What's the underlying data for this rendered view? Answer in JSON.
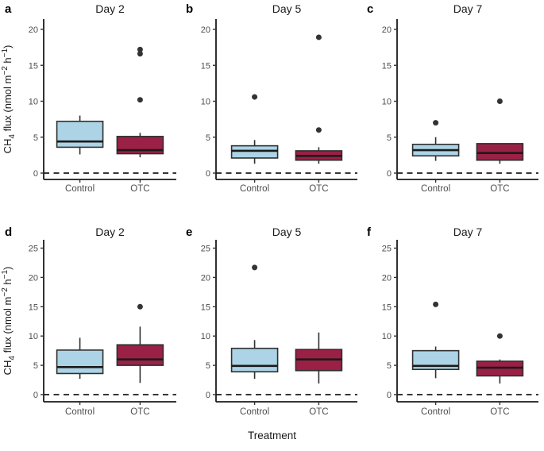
{
  "figure": {
    "xlabel": "Treatment",
    "ylabel_rich": [
      {
        "t": "CH"
      },
      {
        "t": "4",
        "sub": true
      },
      {
        "t": " flux (nmol m"
      },
      {
        "t": "−2",
        "sup": true
      },
      {
        "t": " h"
      },
      {
        "t": "−1",
        "sup": true
      },
      {
        "t": ")"
      }
    ],
    "categories": [
      "Control",
      "OTC"
    ],
    "colors": {
      "control_fill": "#ACD4E6",
      "otc_fill": "#9B2045",
      "box_stroke": "#2F2F2F",
      "median": "#1A1A1A",
      "axis": "#1A1A1A",
      "tick_text": "#4D4D4D",
      "outlier": "#333333",
      "title_text": "#1A1A1A",
      "reference_line": "#1A1A1A"
    }
  },
  "chart_data": [
    {
      "type": "boxplot",
      "panel_label": "a",
      "title": "Day 2",
      "ylim": [
        0,
        20
      ],
      "yticks": [
        0,
        5,
        10,
        15,
        20
      ],
      "reference_line_y": 0,
      "boxes": [
        {
          "category": "Control",
          "group": "control",
          "whisker_low": 2.6,
          "q1": 3.6,
          "median": 4.4,
          "q3": 7.2,
          "whisker_high": 8.0,
          "outliers": []
        },
        {
          "category": "OTC",
          "group": "otc",
          "whisker_low": 2.2,
          "q1": 2.7,
          "median": 3.2,
          "q3": 5.1,
          "whisker_high": 5.6,
          "outliers": [
            10.2,
            16.6,
            17.2
          ]
        }
      ]
    },
    {
      "type": "boxplot",
      "panel_label": "b",
      "title": "Day 5",
      "ylim": [
        0,
        20
      ],
      "yticks": [
        0,
        5,
        10,
        15,
        20
      ],
      "reference_line_y": 0,
      "boxes": [
        {
          "category": "Control",
          "group": "control",
          "whisker_low": 1.3,
          "q1": 2.1,
          "median": 3.1,
          "q3": 3.8,
          "whisker_high": 4.6,
          "outliers": [
            10.6
          ]
        },
        {
          "category": "OTC",
          "group": "otc",
          "whisker_low": 1.3,
          "q1": 1.8,
          "median": 2.4,
          "q3": 3.1,
          "whisker_high": 3.6,
          "outliers": [
            6.0,
            18.9
          ]
        }
      ]
    },
    {
      "type": "boxplot",
      "panel_label": "c",
      "title": "Day 7",
      "ylim": [
        0,
        20
      ],
      "yticks": [
        0,
        5,
        10,
        15,
        20
      ],
      "reference_line_y": 0,
      "boxes": [
        {
          "category": "Control",
          "group": "control",
          "whisker_low": 1.7,
          "q1": 2.4,
          "median": 3.2,
          "q3": 4.0,
          "whisker_high": 5.0,
          "outliers": [
            7.0
          ]
        },
        {
          "category": "OTC",
          "group": "otc",
          "whisker_low": 1.3,
          "q1": 1.8,
          "median": 2.8,
          "q3": 4.1,
          "whisker_high": 4.1,
          "outliers": [
            10.0
          ]
        }
      ]
    },
    {
      "type": "boxplot",
      "panel_label": "d",
      "title": "Day 2",
      "ylim": [
        0,
        25
      ],
      "yticks": [
        0,
        5,
        10,
        15,
        20,
        25
      ],
      "reference_line_y": 0,
      "boxes": [
        {
          "category": "Control",
          "group": "control",
          "whisker_low": 2.7,
          "q1": 3.6,
          "median": 4.7,
          "q3": 7.6,
          "whisker_high": 9.7,
          "outliers": []
        },
        {
          "category": "OTC",
          "group": "otc",
          "whisker_low": 2.0,
          "q1": 5.0,
          "median": 6.0,
          "q3": 8.5,
          "whisker_high": 11.6,
          "outliers": [
            15.0
          ]
        }
      ]
    },
    {
      "type": "boxplot",
      "panel_label": "e",
      "title": "Day 5",
      "ylim": [
        0,
        25
      ],
      "yticks": [
        0,
        5,
        10,
        15,
        20,
        25
      ],
      "reference_line_y": 0,
      "boxes": [
        {
          "category": "Control",
          "group": "control",
          "whisker_low": 2.7,
          "q1": 3.9,
          "median": 4.9,
          "q3": 7.9,
          "whisker_high": 9.3,
          "outliers": [
            21.7
          ]
        },
        {
          "category": "OTC",
          "group": "otc",
          "whisker_low": 1.9,
          "q1": 4.1,
          "median": 6.0,
          "q3": 7.7,
          "whisker_high": 10.6,
          "outliers": []
        }
      ]
    },
    {
      "type": "boxplot",
      "panel_label": "f",
      "title": "Day 7",
      "ylim": [
        0,
        25
      ],
      "yticks": [
        0,
        5,
        10,
        15,
        20,
        25
      ],
      "reference_line_y": 0,
      "boxes": [
        {
          "category": "Control",
          "group": "control",
          "whisker_low": 2.8,
          "q1": 4.3,
          "median": 4.9,
          "q3": 7.5,
          "whisker_high": 8.2,
          "outliers": [
            15.4
          ]
        },
        {
          "category": "OTC",
          "group": "otc",
          "whisker_low": 1.9,
          "q1": 3.2,
          "median": 4.6,
          "q3": 5.7,
          "whisker_high": 6.0,
          "outliers": [
            10.0
          ]
        }
      ]
    }
  ]
}
